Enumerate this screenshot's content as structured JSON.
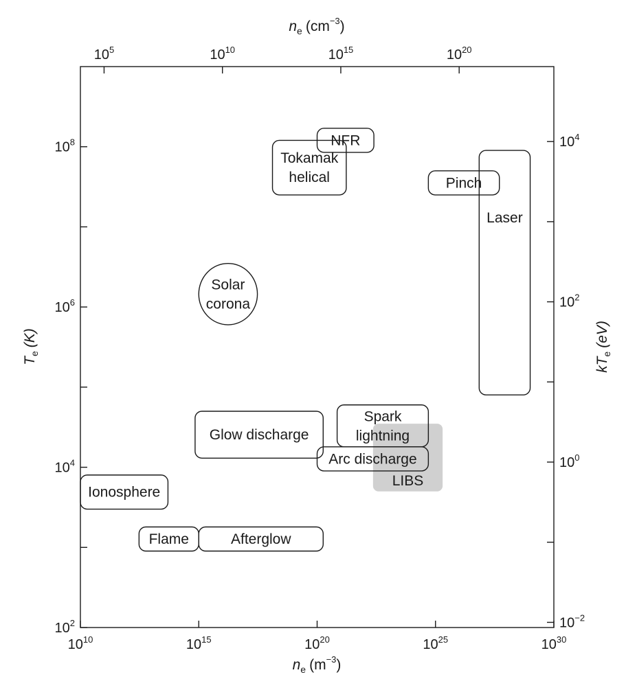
{
  "chart_data": {
    "type": "scatter",
    "title": "",
    "x_axis": {
      "label": "n",
      "label_sub": "e",
      "label_unit": "(m",
      "label_unit_exp": "−3",
      "label_close": ")",
      "scale": "log",
      "range": [
        10000000000.0,
        1e+30
      ],
      "ticks": [
        {
          "value": 10000000000.0,
          "base": "10",
          "exp": "10"
        },
        {
          "value": 1000000000000000.0,
          "base": "10",
          "exp": "15"
        },
        {
          "value": 1e+20,
          "base": "10",
          "exp": "20"
        },
        {
          "value": 1e+25,
          "base": "10",
          "exp": "25"
        },
        {
          "value": 1e+30,
          "base": "10",
          "exp": "30"
        }
      ]
    },
    "x2_axis": {
      "label": "n",
      "label_sub": "e",
      "label_unit": "(cm",
      "label_unit_exp": "−3",
      "label_close": ")",
      "scale": "log",
      "ticks": [
        {
          "value": 100000.0,
          "base": "10",
          "exp": "5"
        },
        {
          "value": 10000000000.0,
          "base": "10",
          "exp": "10"
        },
        {
          "value": 1000000000000000.0,
          "base": "10",
          "exp": "15"
        },
        {
          "value": 1e+20,
          "base": "10",
          "exp": "20"
        }
      ]
    },
    "y_axis": {
      "label": "T",
      "label_sub": "e",
      "label_unit": "(K)",
      "scale": "log",
      "range": [
        100,
        1000000000.0
      ],
      "ticks": [
        {
          "value": 100,
          "base": "10",
          "exp": "2",
          "labeled": true
        },
        {
          "value": 1000,
          "labeled": false
        },
        {
          "value": 10000,
          "base": "10",
          "exp": "4",
          "labeled": true
        },
        {
          "value": 100000,
          "labeled": false
        },
        {
          "value": 1000000,
          "base": "10",
          "exp": "6",
          "labeled": true
        },
        {
          "value": 10000000,
          "labeled": false
        },
        {
          "value": 100000000,
          "base": "10",
          "exp": "8",
          "labeled": true
        }
      ]
    },
    "y2_axis": {
      "label": "kT",
      "label_sub": "e",
      "label_unit": "(eV)",
      "scale": "log",
      "ticks": [
        {
          "value": 0.01,
          "base": "10",
          "exp": "−2",
          "labeled": true
        },
        {
          "value": 0.1,
          "labeled": false
        },
        {
          "value": 1,
          "base": "10",
          "exp": "0",
          "labeled": true
        },
        {
          "value": 10,
          "labeled": false
        },
        {
          "value": 100,
          "base": "10",
          "exp": "2",
          "labeled": true
        },
        {
          "value": 1000,
          "labeled": false
        },
        {
          "value": 10000,
          "base": "10",
          "exp": "4",
          "labeled": true
        }
      ]
    },
    "regions": [
      {
        "label": [
          "NFR"
        ],
        "shape": "rounded-rect",
        "ne_range": [
          1e+20,
          2.5e+22
        ],
        "te_range": [
          85000000.0,
          170000000.0
        ]
      },
      {
        "label": [
          "Tokamak",
          "helical"
        ],
        "shape": "rounded-rect",
        "ne_range": [
          1.3e+18,
          1.7e+21
        ],
        "te_range": [
          25000000.0,
          120000000.0
        ]
      },
      {
        "label": [
          "Pinch"
        ],
        "shape": "rounded-rect",
        "ne_range": [
          5e+24,
          5e+27
        ],
        "te_range": [
          25000000.0,
          50000000.0
        ]
      },
      {
        "label": [
          "Laser"
        ],
        "shape": "rounded-rect",
        "ne_range": [
          7e+26,
          1e+29
        ],
        "te_range": [
          80000.0,
          90000000.0
        ]
      },
      {
        "label": [
          "Solar",
          "corona"
        ],
        "shape": "ellipse",
        "ne_range": [
          1000000000000000.0,
          3e+17
        ],
        "te_range": [
          600000.0,
          3500000.0
        ]
      },
      {
        "label": [
          "Spark",
          "lightning"
        ],
        "shape": "rounded-rect",
        "ne_range": [
          7e+20,
          5e+24
        ],
        "te_range": [
          18000.0,
          60000.0
        ]
      },
      {
        "label": [
          "Glow discharge"
        ],
        "shape": "rounded-rect",
        "ne_range": [
          700000000000000.0,
          1.8e+20
        ],
        "te_range": [
          13000.0,
          50000.0
        ]
      },
      {
        "label": [
          "Arc discharge"
        ],
        "shape": "rounded-rect",
        "ne_range": [
          1e+20,
          5e+24
        ],
        "te_range": [
          9000.0,
          18000.0
        ]
      },
      {
        "label": [
          "LIBS"
        ],
        "shape": "shaded-rect",
        "ne_range": [
          2.3e+22,
          2e+25
        ],
        "te_range": [
          5000.0,
          35000.0
        ]
      },
      {
        "label": [
          "Ionosphere"
        ],
        "shape": "rounded-rect",
        "ne_range": [
          10000000000.0,
          50000000000000.0
        ],
        "te_range": [
          3000.0,
          8000.0
        ]
      },
      {
        "label": [
          "Flame"
        ],
        "shape": "rounded-rect",
        "ne_range": [
          3000000000000.0,
          1000000000000000.0
        ],
        "te_range": [
          900,
          1800
        ]
      },
      {
        "label": [
          "Afterglow"
        ],
        "shape": "rounded-rect",
        "ne_range": [
          1000000000000000.0,
          1.8e+20
        ],
        "te_range": [
          900,
          1800
        ]
      }
    ]
  }
}
